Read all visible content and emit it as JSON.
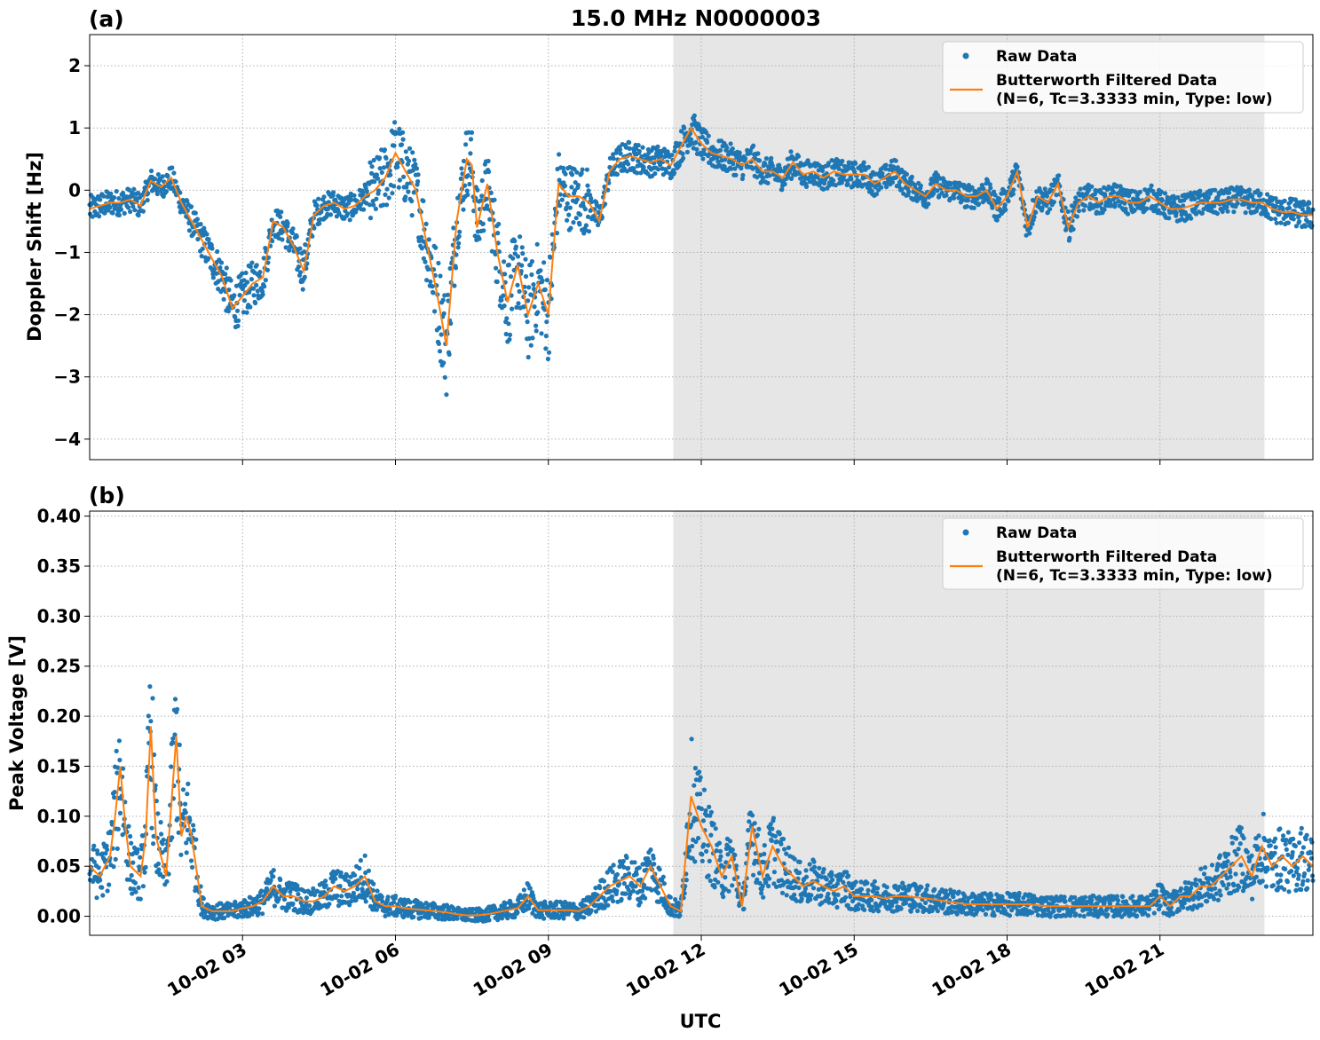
{
  "figure_title": "15.0 MHz N0000003",
  "x_axis_label": "UTC",
  "x_ticks": [
    "10-02 03",
    "10-02 06",
    "10-02 09",
    "10-02 12",
    "10-02 15",
    "10-02 18",
    "10-02 21"
  ],
  "legend": {
    "raw": "Raw Data",
    "filtered_line1": "Butterworth Filtered Data",
    "filtered_line2": "(N=6, Tc=3.3333 min, Type: low)"
  },
  "colors": {
    "raw": "#1f77b4",
    "filtered": "#ff7f0e",
    "shade": "#e6e6e6"
  },
  "chart_data": [
    {
      "type": "scatter",
      "panel_label": "(a)",
      "ylabel": "Doppler Shift [Hz]",
      "xlim_hours": [
        0.0,
        24.0
      ],
      "ylim": [
        -4.33,
        2.5
      ],
      "y_ticks": [
        2,
        1,
        0,
        -1,
        -2,
        -3,
        -4
      ],
      "y_tick_labels": [
        "2",
        "1",
        "0",
        "−1",
        "−2",
        "−3",
        "−4"
      ],
      "shaded_x_hours": [
        11.45,
        23.05
      ],
      "grid": true,
      "legend_position": "upper right",
      "series": [
        {
          "name": "Raw Data",
          "style": "points"
        },
        {
          "name": "Butterworth Filtered Data",
          "style": "line",
          "x": [
            0.0,
            0.2,
            0.4,
            0.6,
            0.8,
            1.0,
            1.2,
            1.4,
            1.6,
            1.8,
            2.0,
            2.2,
            2.4,
            2.6,
            2.8,
            3.0,
            3.2,
            3.4,
            3.6,
            3.8,
            4.0,
            4.2,
            4.4,
            4.6,
            4.8,
            5.0,
            5.2,
            5.4,
            5.6,
            5.8,
            6.0,
            6.2,
            6.4,
            6.6,
            6.8,
            7.0,
            7.2,
            7.4,
            7.5,
            7.6,
            7.8,
            8.0,
            8.2,
            8.4,
            8.6,
            8.8,
            9.0,
            9.2,
            9.4,
            9.6,
            9.8,
            10.0,
            10.2,
            10.4,
            10.6,
            10.8,
            11.0,
            11.2,
            11.4,
            11.6,
            11.8,
            12.0,
            12.2,
            12.4,
            12.6,
            12.8,
            13.0,
            13.2,
            13.4,
            13.6,
            13.8,
            14.0,
            14.2,
            14.4,
            14.6,
            14.8,
            15.0,
            15.2,
            15.4,
            15.6,
            15.8,
            16.0,
            16.2,
            16.4,
            16.6,
            16.8,
            17.0,
            17.2,
            17.4,
            17.6,
            17.8,
            18.0,
            18.2,
            18.4,
            18.6,
            18.8,
            19.0,
            19.2,
            19.4,
            19.6,
            19.8,
            20.0,
            20.2,
            20.4,
            20.6,
            20.8,
            21.0,
            21.2,
            21.4,
            21.6,
            21.8,
            22.0,
            22.2,
            22.4,
            22.6,
            22.8,
            23.0,
            23.2,
            23.4,
            23.6,
            23.8,
            24.0
          ],
          "y": [
            -0.3,
            -0.25,
            -0.2,
            -0.2,
            -0.15,
            -0.25,
            0.15,
            0.05,
            0.2,
            -0.2,
            -0.5,
            -0.8,
            -1.1,
            -1.4,
            -1.9,
            -1.7,
            -1.5,
            -1.4,
            -0.5,
            -0.6,
            -0.9,
            -1.3,
            -0.4,
            -0.25,
            -0.2,
            -0.3,
            -0.25,
            -0.1,
            0.0,
            0.2,
            0.6,
            0.3,
            0.0,
            -0.8,
            -1.6,
            -2.5,
            -0.5,
            0.5,
            0.4,
            -0.6,
            0.1,
            -1.0,
            -1.8,
            -1.2,
            -2.0,
            -1.5,
            -2.0,
            0.1,
            -0.1,
            -0.1,
            -0.2,
            -0.5,
            0.3,
            0.5,
            0.55,
            0.5,
            0.45,
            0.5,
            0.4,
            0.7,
            1.0,
            0.75,
            0.6,
            0.55,
            0.5,
            0.4,
            0.5,
            0.3,
            0.3,
            0.2,
            0.45,
            0.25,
            0.3,
            0.2,
            0.3,
            0.25,
            0.25,
            0.25,
            0.1,
            0.2,
            0.3,
            0.1,
            0.0,
            -0.1,
            0.1,
            0.0,
            0.0,
            -0.1,
            -0.1,
            0.0,
            -0.3,
            -0.1,
            0.3,
            -0.6,
            -0.1,
            -0.2,
            0.1,
            -0.6,
            -0.2,
            -0.1,
            -0.2,
            -0.1,
            -0.1,
            -0.2,
            -0.2,
            -0.1,
            -0.2,
            -0.3,
            -0.3,
            -0.25,
            -0.2,
            -0.2,
            -0.2,
            -0.15,
            -0.15,
            -0.2,
            -0.2,
            -0.3,
            -0.35,
            -0.35,
            -0.4,
            -0.4
          ]
        }
      ]
    },
    {
      "type": "scatter",
      "panel_label": "(b)",
      "ylabel": "Peak Voltage [V]",
      "xlim_hours": [
        0.0,
        24.0
      ],
      "ylim": [
        -0.019,
        0.405
      ],
      "y_ticks": [
        0.4,
        0.35,
        0.3,
        0.25,
        0.2,
        0.15,
        0.1,
        0.05,
        0.0
      ],
      "y_tick_labels": [
        "0.40",
        "0.35",
        "0.30",
        "0.25",
        "0.20",
        "0.15",
        "0.10",
        "0.05",
        "0.00"
      ],
      "shaded_x_hours": [
        11.45,
        23.05
      ],
      "grid": true,
      "legend_position": "upper right",
      "series": [
        {
          "name": "Raw Data",
          "style": "points"
        },
        {
          "name": "Butterworth Filtered Data",
          "style": "line",
          "x": [
            0.0,
            0.2,
            0.4,
            0.5,
            0.6,
            0.7,
            0.8,
            1.0,
            1.1,
            1.2,
            1.3,
            1.5,
            1.7,
            1.8,
            1.9,
            2.0,
            2.2,
            2.4,
            2.6,
            2.8,
            3.0,
            3.2,
            3.4,
            3.6,
            3.8,
            4.0,
            4.2,
            4.4,
            4.6,
            4.8,
            5.0,
            5.2,
            5.4,
            5.6,
            5.8,
            6.0,
            6.2,
            6.4,
            6.6,
            6.8,
            7.0,
            7.2,
            7.4,
            7.6,
            7.8,
            8.0,
            8.2,
            8.4,
            8.6,
            8.8,
            9.0,
            9.2,
            9.4,
            9.6,
            9.8,
            10.0,
            10.2,
            10.4,
            10.6,
            10.8,
            11.0,
            11.2,
            11.4,
            11.6,
            11.8,
            12.0,
            12.2,
            12.4,
            12.6,
            12.8,
            13.0,
            13.2,
            13.4,
            13.6,
            13.8,
            14.0,
            14.2,
            14.4,
            14.6,
            14.8,
            15.0,
            15.2,
            15.4,
            15.6,
            15.8,
            16.0,
            16.4,
            16.8,
            17.2,
            17.6,
            18.0,
            18.4,
            18.8,
            19.2,
            19.6,
            20.0,
            20.4,
            20.8,
            21.0,
            21.2,
            21.4,
            21.6,
            21.8,
            22.0,
            22.2,
            22.4,
            22.6,
            22.8,
            23.0,
            23.2,
            23.4,
            23.6,
            23.8,
            24.0
          ],
          "y": [
            0.05,
            0.04,
            0.06,
            0.1,
            0.15,
            0.09,
            0.05,
            0.04,
            0.08,
            0.19,
            0.08,
            0.04,
            0.18,
            0.08,
            0.1,
            0.08,
            0.01,
            0.005,
            0.005,
            0.005,
            0.008,
            0.01,
            0.015,
            0.03,
            0.02,
            0.02,
            0.015,
            0.015,
            0.02,
            0.03,
            0.025,
            0.03,
            0.04,
            0.015,
            0.01,
            0.01,
            0.008,
            0.007,
            0.006,
            0.005,
            0.004,
            0.002,
            0.001,
            0.001,
            0.002,
            0.004,
            0.006,
            0.008,
            0.02,
            0.006,
            0.006,
            0.006,
            0.006,
            0.005,
            0.01,
            0.02,
            0.03,
            0.035,
            0.04,
            0.03,
            0.05,
            0.03,
            0.01,
            0.005,
            0.12,
            0.09,
            0.07,
            0.04,
            0.06,
            0.01,
            0.09,
            0.04,
            0.07,
            0.05,
            0.04,
            0.03,
            0.035,
            0.03,
            0.025,
            0.03,
            0.02,
            0.02,
            0.02,
            0.018,
            0.02,
            0.02,
            0.018,
            0.015,
            0.012,
            0.012,
            0.012,
            0.012,
            0.01,
            0.01,
            0.01,
            0.01,
            0.01,
            0.01,
            0.02,
            0.01,
            0.02,
            0.02,
            0.03,
            0.03,
            0.04,
            0.05,
            0.06,
            0.04,
            0.07,
            0.05,
            0.06,
            0.05,
            0.06,
            0.05
          ]
        }
      ]
    }
  ]
}
